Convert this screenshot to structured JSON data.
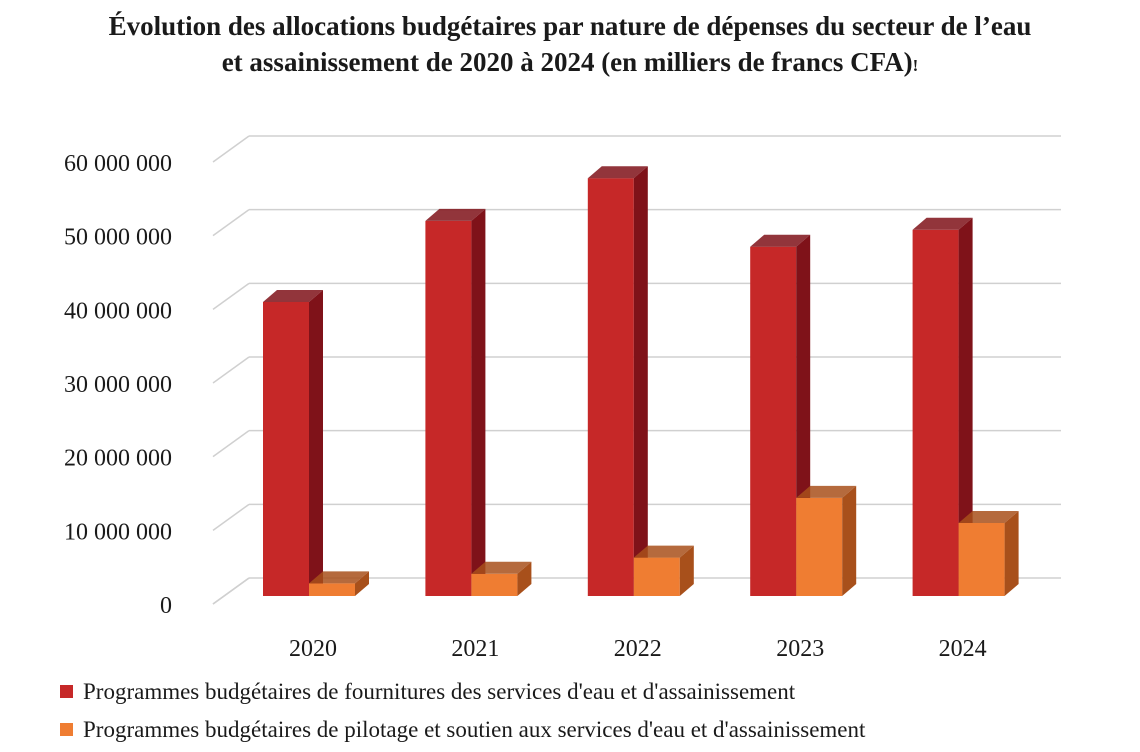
{
  "chart_data": {
    "type": "bar",
    "title_line1": "Évolution des allocations budgétaires par nature de dépenses du secteur de l’eau",
    "title_line2": "et assainissement de 2020 à 2024 (en milliers de francs CFA)",
    "title_mark": "!",
    "categories": [
      "2020",
      "2021",
      "2022",
      "2023",
      "2024"
    ],
    "series": [
      {
        "name": "Programmes budgétaires de fournitures des services d'eau et d'assainissement",
        "color": "#c62828",
        "side_color": "#7f1219",
        "values": [
          41000000,
          52000000,
          57800000,
          48500000,
          50800000
        ]
      },
      {
        "name": "Programmes budgétaires de pilotage et soutien aux services d'eau et d'assainissement",
        "color": "#ef7d32",
        "side_color": "#a8501b",
        "values": [
          2800000,
          4100000,
          6300000,
          14400000,
          11000000
        ]
      }
    ],
    "ylim": [
      0,
      60000000
    ],
    "yticks": [
      "0",
      "10 000 000",
      "20 000 000",
      "30 000 000",
      "40 000 000",
      "50 000 000",
      "60 000 000"
    ],
    "ytick_values": [
      0,
      10000000,
      20000000,
      30000000,
      40000000,
      50000000,
      60000000
    ],
    "grid": true,
    "legend_position": "bottom",
    "style": "3d-bar"
  }
}
